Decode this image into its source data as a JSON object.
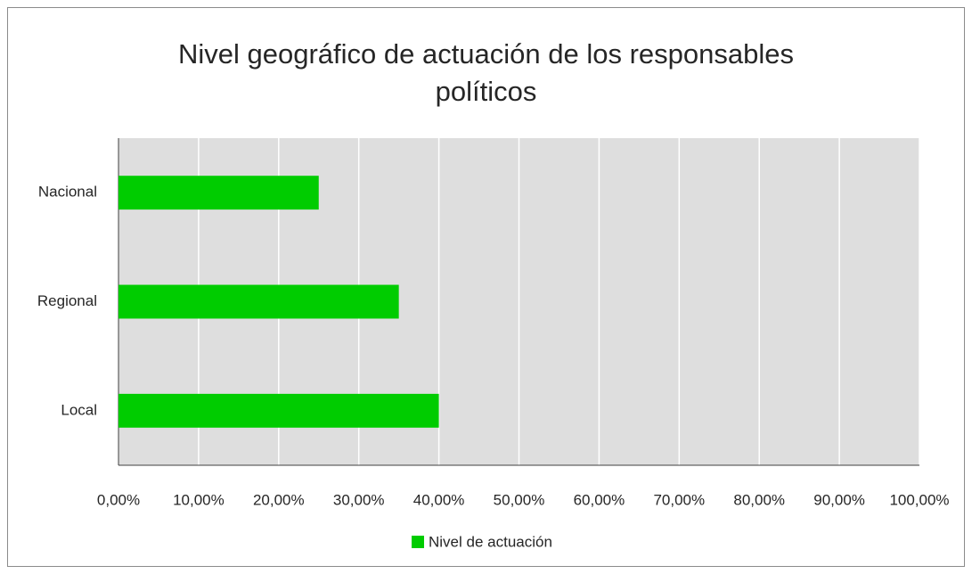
{
  "chart_data": {
    "type": "bar",
    "orientation": "horizontal",
    "title": "Nivel geográfico de actuación de los responsables políticos",
    "categories": [
      "Nacional",
      "Regional",
      "Local"
    ],
    "series": [
      {
        "name": "Nivel de actuación",
        "color": "#00cc00",
        "values": [
          25,
          35,
          40
        ]
      }
    ],
    "xlim": [
      0,
      100
    ],
    "xticks": [
      {
        "value": 0,
        "label": "0,00%"
      },
      {
        "value": 10,
        "label": "10,00%"
      },
      {
        "value": 20,
        "label": "20,00%"
      },
      {
        "value": 30,
        "label": "30,00%"
      },
      {
        "value": 40,
        "label": "40,00%"
      },
      {
        "value": 50,
        "label": "50,00%"
      },
      {
        "value": 60,
        "label": "60,00%"
      },
      {
        "value": 70,
        "label": "70,00%"
      },
      {
        "value": 80,
        "label": "80,00%"
      },
      {
        "value": 90,
        "label": "90,00%"
      },
      {
        "value": 100,
        "label": "100,00%"
      }
    ],
    "grid": true,
    "legend": "bottom"
  }
}
